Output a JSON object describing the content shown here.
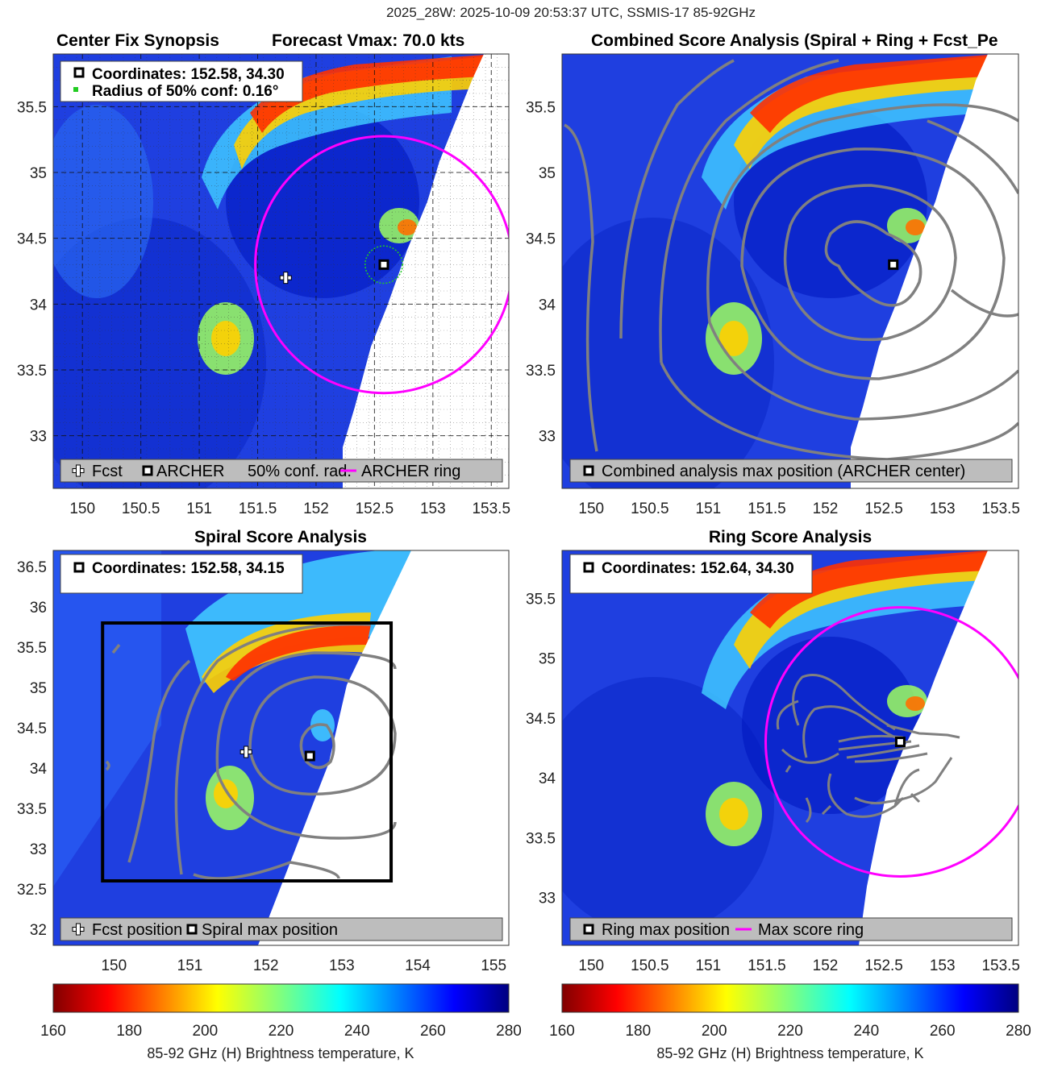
{
  "figure": {
    "suptitle": "2025_28W: 2025-10-09 20:53:37 UTC, SSMIS-17 85-92GHz"
  },
  "colors": {
    "ring": "#ff00ff",
    "contour": "#808080",
    "conf_circle": "#22cc22",
    "legend_bg": "#bdbdbd"
  },
  "colorbar": {
    "ticks": [
      "160",
      "180",
      "200",
      "220",
      "240",
      "260",
      "280"
    ],
    "label": "85-92 GHz (H) Brightness temperature, K",
    "range": [
      160,
      280
    ]
  },
  "chart_data": [
    {
      "type": "heatmap",
      "id": "p1",
      "title_left": "Center Fix Synopsis",
      "title_right": "Forecast Vmax: 70.0 kts",
      "xlim": [
        149.75,
        153.65
      ],
      "ylim": [
        32.6,
        35.9
      ],
      "xticks": [
        "150",
        "150.5",
        "151",
        "151.5",
        "152",
        "152.5",
        "153",
        "153.5"
      ],
      "yticks": [
        "33",
        "33.5",
        "34",
        "34.5",
        "35",
        "35.5"
      ],
      "info_lines": [
        "Coordinates: 152.58, 34.30",
        "Radius of 50% conf: 0.16°"
      ],
      "legend": [
        "Fcst",
        "ARCHER",
        "50% conf. rad.",
        "ARCHER ring"
      ],
      "fcst": [
        151.74,
        34.2
      ],
      "archer": [
        152.58,
        34.3
      ],
      "conf_radius_deg": 0.16,
      "ring": {
        "center": [
          152.58,
          34.3
        ],
        "radius_deg": 1.1
      },
      "gridlines": true
    },
    {
      "type": "heatmap",
      "id": "p2",
      "title": "Combined Score Analysis (Spiral + Ring + Fcst_Pe",
      "xlim": [
        149.75,
        153.65
      ],
      "ylim": [
        32.6,
        35.9
      ],
      "xticks": [
        "150",
        "150.5",
        "151",
        "151.5",
        "152",
        "152.5",
        "153",
        "153.5"
      ],
      "yticks": [
        "33",
        "33.5",
        "34",
        "34.5",
        "35",
        "35.5"
      ],
      "legend": [
        "Combined analysis max position (ARCHER center)"
      ],
      "archer": [
        152.58,
        34.3
      ],
      "contours": true
    },
    {
      "type": "heatmap",
      "id": "p3",
      "title": "Spiral Score Analysis",
      "xlim": [
        149.2,
        155.2
      ],
      "ylim": [
        31.8,
        36.7
      ],
      "xticks": [
        "150",
        "151",
        "152",
        "153",
        "154",
        "155"
      ],
      "yticks": [
        "32",
        "32.5",
        "33",
        "33.5",
        "34",
        "34.5",
        "35",
        "35.5",
        "36",
        "36.5"
      ],
      "info_lines": [
        "Coordinates: 152.58, 34.15"
      ],
      "legend": [
        "Fcst position",
        "Spiral max position"
      ],
      "fcst": [
        151.74,
        34.2
      ],
      "spiral_max": [
        152.58,
        34.15
      ],
      "box": {
        "lon": [
          149.85,
          153.65
        ],
        "lat": [
          32.6,
          35.8
        ]
      }
    },
    {
      "type": "heatmap",
      "id": "p4",
      "title": "Ring Score Analysis",
      "xlim": [
        149.75,
        153.65
      ],
      "ylim": [
        32.6,
        35.9
      ],
      "xticks": [
        "150",
        "150.5",
        "151",
        "151.5",
        "152",
        "152.5",
        "153",
        "153.5"
      ],
      "yticks": [
        "33",
        "33.5",
        "34",
        "34.5",
        "35",
        "35.5"
      ],
      "info_lines": [
        "Coordinates: 152.64, 34.30"
      ],
      "legend": [
        "Ring max position",
        "Max score ring"
      ],
      "ring_max": [
        152.64,
        34.3
      ],
      "ring": {
        "center": [
          152.64,
          34.3
        ],
        "radius_deg": 1.15
      }
    }
  ]
}
